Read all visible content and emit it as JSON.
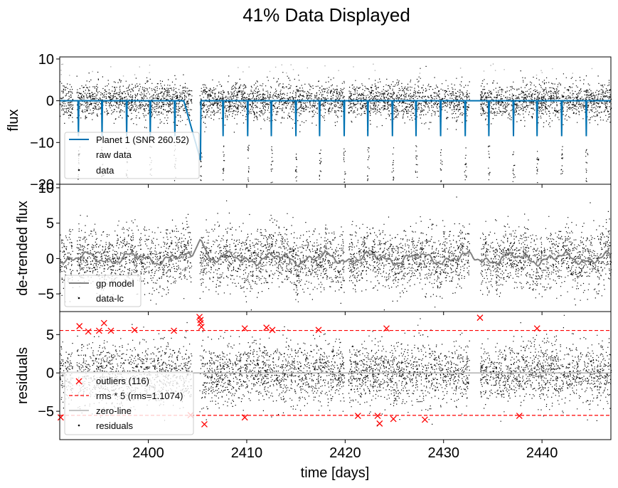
{
  "figure": {
    "title": "41% Data Displayed"
  },
  "chart_data": [
    {
      "type": "scatter",
      "panel": "flux",
      "ylabel": "flux",
      "xlim": [
        2391,
        2447
      ],
      "ylim": [
        -20,
        10.5
      ],
      "xticks": [
        2400,
        2410,
        2420,
        2430,
        2440
      ],
      "yticks": [
        10,
        0,
        -10,
        -20
      ],
      "series": [
        {
          "name": "Planet 1 (SNR 260.52)",
          "kind": "line",
          "color": "#0072b2",
          "baseline": 0,
          "transit_depth": -8.5,
          "deep_transit": {
            "x": 2405.3,
            "y": -14.2
          }
        },
        {
          "name": "raw data",
          "kind": "points",
          "color": "#b0b0b0"
        },
        {
          "name": "data",
          "kind": "points",
          "color": "#000000",
          "scatter_sigma": 2.2
        }
      ],
      "transit_times": [
        2392.9,
        2395.3,
        2397.8,
        2400.2,
        2402.7,
        2405.3,
        2407.6,
        2410.1,
        2412.5,
        2415.0,
        2417.4,
        2419.9,
        2422.3,
        2424.8,
        2427.2,
        2429.7,
        2432.2,
        2434.6,
        2437.1,
        2439.5,
        2442.0,
        2444.5
      ],
      "legend_loc": "lower left"
    },
    {
      "type": "scatter",
      "panel": "detrended",
      "ylabel": "de-trended flux",
      "xlim": [
        2391,
        2447
      ],
      "ylim": [
        -7.5,
        10.5
      ],
      "xticks": [
        2400,
        2410,
        2420,
        2430,
        2440
      ],
      "yticks": [
        10,
        5,
        0,
        -5
      ],
      "series": [
        {
          "name": "gp model",
          "kind": "line",
          "color": "#808080"
        },
        {
          "name": "data-lc",
          "kind": "points",
          "color": "#000000",
          "scatter_sigma": 2.1
        }
      ],
      "legend_loc": "lower left"
    },
    {
      "type": "scatter",
      "panel": "residuals",
      "ylabel": "residuals",
      "xlabel": "time [days]",
      "xlim": [
        2391,
        2447
      ],
      "ylim": [
        -8.7,
        8
      ],
      "xticks": [
        2400,
        2410,
        2420,
        2430,
        2440
      ],
      "yticks": [
        5,
        0,
        -5
      ],
      "threshold": 5.537,
      "series": [
        {
          "name": "outliers (116)",
          "kind": "markers",
          "marker": "x",
          "color": "#ff0000"
        },
        {
          "name": "rms * 5 (rms=1.1074)",
          "kind": "dashed-line",
          "color": "#ff0000"
        },
        {
          "name": "zero-line",
          "kind": "line",
          "color": "#b0b0b0"
        },
        {
          "name": "residuals",
          "kind": "points",
          "color": "#000000",
          "scatter_sigma": 2.0
        }
      ],
      "outliers": [
        [
          2391.1,
          -5.8
        ],
        [
          2393.0,
          6.1
        ],
        [
          2393.9,
          5.4
        ],
        [
          2395.0,
          5.5
        ],
        [
          2395.5,
          6.5
        ],
        [
          2396.2,
          5.5
        ],
        [
          2398.6,
          5.6
        ],
        [
          2402.6,
          5.5
        ],
        [
          2404.3,
          -5.5
        ],
        [
          2405.2,
          7.3
        ],
        [
          2405.3,
          6.9
        ],
        [
          2405.3,
          6.5
        ],
        [
          2405.4,
          6.0
        ],
        [
          2405.7,
          -6.7
        ],
        [
          2409.8,
          5.8
        ],
        [
          2409.8,
          -5.8
        ],
        [
          2412.0,
          5.9
        ],
        [
          2412.6,
          5.6
        ],
        [
          2417.3,
          5.6
        ],
        [
          2421.3,
          -5.6
        ],
        [
          2423.3,
          -5.6
        ],
        [
          2423.5,
          -6.6
        ],
        [
          2424.2,
          5.8
        ],
        [
          2424.9,
          -6.0
        ],
        [
          2428.1,
          -6.1
        ],
        [
          2433.7,
          7.2
        ],
        [
          2437.7,
          -5.6
        ],
        [
          2439.5,
          5.8
        ]
      ],
      "legend_loc": "lower left"
    }
  ],
  "data_segments": [
    [
      2391.0,
      2392.3
    ],
    [
      2392.7,
      2404.4
    ],
    [
      2405.2,
      2419.9
    ],
    [
      2420.3,
      2432.6
    ],
    [
      2433.7,
      2447.0
    ]
  ]
}
